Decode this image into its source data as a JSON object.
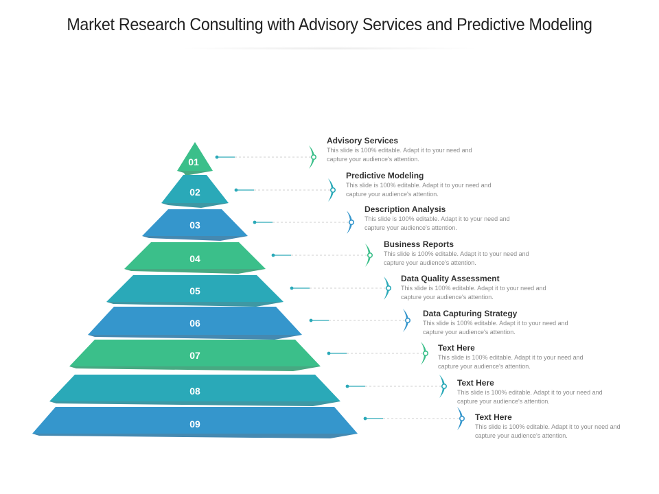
{
  "title": "Market Research Consulting with Advisory Services and Predictive Modeling",
  "colors": {
    "green": "#3bbf8a",
    "teal": "#2aa9b8",
    "blue": "#3596cc",
    "connector": "#2aa9b8"
  },
  "levels": [
    {
      "number": "01",
      "title": "Advisory Services",
      "desc": "This slide is 100% editable. Adapt it to your need and capture your audience's attention.",
      "color": "green"
    },
    {
      "number": "02",
      "title": "Predictive Modeling",
      "desc": "This slide is 100% editable. Adapt it to your need and capture your audience's attention.",
      "color": "teal"
    },
    {
      "number": "03",
      "title": "Description Analysis",
      "desc": "This slide is 100% editable. Adapt it to your need and capture your audience's attention.",
      "color": "blue"
    },
    {
      "number": "04",
      "title": "Business Reports",
      "desc": "This slide is 100% editable. Adapt it to your need and capture your audience's attention.",
      "color": "green"
    },
    {
      "number": "05",
      "title": "Data Quality Assessment",
      "desc": "This slide is 100% editable. Adapt it to your need and capture your audience's attention.",
      "color": "teal"
    },
    {
      "number": "06",
      "title": "Data Capturing Strategy",
      "desc": "This slide is 100% editable. Adapt it to your need and capture your audience's attention.",
      "color": "blue"
    },
    {
      "number": "07",
      "title": "Text Here",
      "desc": "This slide is 100% editable. Adapt it to your need and capture your audience's attention.",
      "color": "green"
    },
    {
      "number": "08",
      "title": "Text Here",
      "desc": "This slide is 100% editable. Adapt it to your need and capture your audience's attention.",
      "color": "teal"
    },
    {
      "number": "09",
      "title": "Text Here",
      "desc": "This slide is 100% editable. Adapt it to your need and capture your audience's attention.",
      "color": "blue"
    }
  ]
}
